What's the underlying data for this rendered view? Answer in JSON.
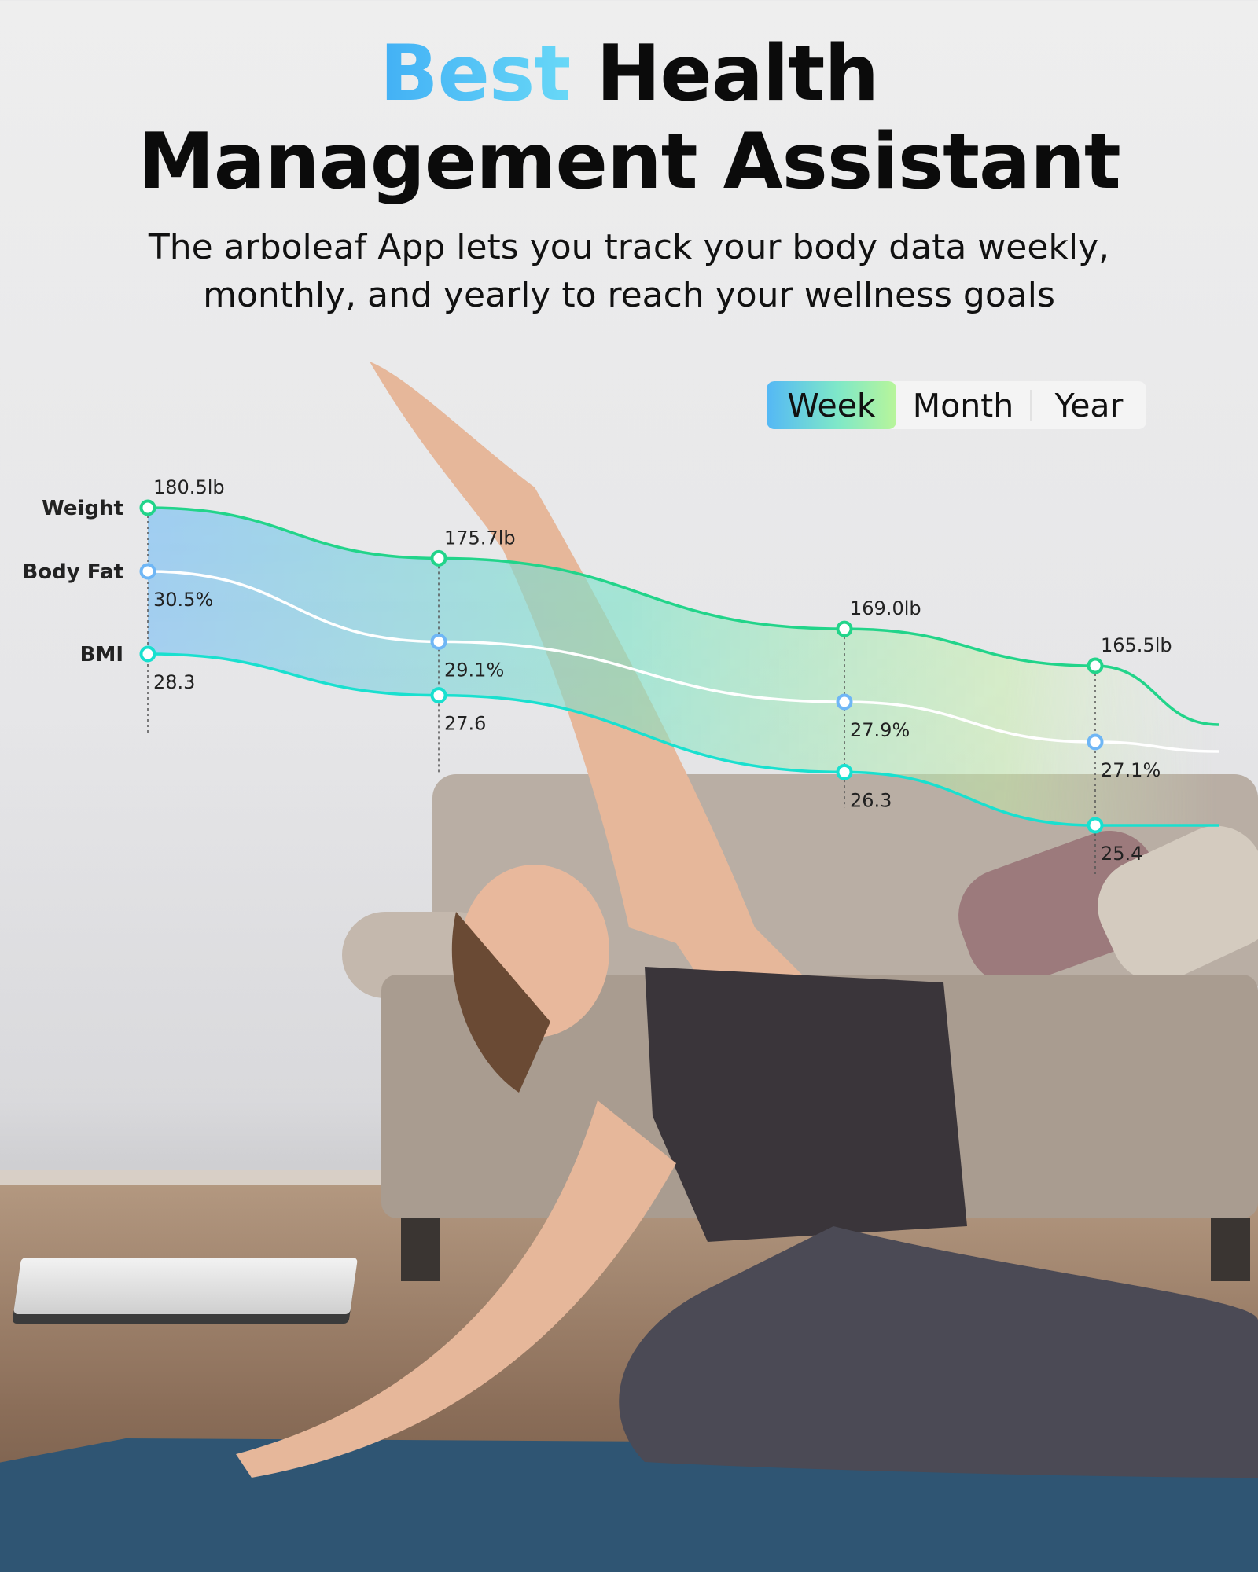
{
  "headline": {
    "accent": "Best",
    "rest_line1": "Health",
    "line2": "Management Assistant"
  },
  "subtitle": {
    "line1": "The arboleaf App lets you track your body data weekly,",
    "line2": "monthly, and yearly to reach your wellness goals"
  },
  "tabs": [
    {
      "label": "Week",
      "active": true
    },
    {
      "label": "Month",
      "active": false
    },
    {
      "label": "Year",
      "active": false
    }
  ],
  "colors": {
    "weight": "#22d48a",
    "body_fat": "#ffffff",
    "body_fat_marker": "#6fb6f5",
    "bmi": "#19e0cf",
    "tab_gradient": [
      "#54b8f5",
      "#b8f59a"
    ]
  },
  "chart_data": {
    "type": "line",
    "series": [
      {
        "name": "Weight",
        "values": [
          180.5,
          175.7,
          169.0,
          165.5
        ],
        "labels": [
          "180.5lb",
          "175.7lb",
          "169.0lb",
          "165.5lb"
        ]
      },
      {
        "name": "Body Fat",
        "values": [
          30.5,
          29.1,
          27.9,
          27.1
        ],
        "labels": [
          "30.5%",
          "29.1%",
          "27.9%",
          "27.1%"
        ]
      },
      {
        "name": "BMI",
        "values": [
          28.3,
          27.6,
          26.3,
          25.4
        ],
        "labels": [
          "28.3",
          "27.6",
          "26.3",
          "25.4"
        ]
      }
    ],
    "grid": false,
    "area_fill": "gradient between Weight and BMI lines, blue to green"
  }
}
